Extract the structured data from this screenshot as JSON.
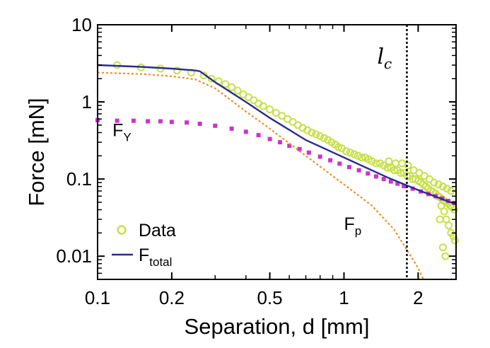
{
  "chart_data": {
    "type": "scatter",
    "title": "",
    "xlabel": "Separation, d [mm]",
    "ylabel": "Force [mN]",
    "xscale": "log",
    "yscale": "log",
    "xlim": [
      0.1,
      2.85
    ],
    "ylim": [
      0.005,
      10
    ],
    "x_ticks": [
      0.1,
      0.2,
      0.5,
      1,
      2
    ],
    "x_tick_labels": [
      "0.1",
      "0.2",
      "0.5",
      "1",
      "2"
    ],
    "y_ticks": [
      0.01,
      0.1,
      1,
      10
    ],
    "y_tick_labels": [
      "0.01",
      "0.1",
      "1",
      "10"
    ],
    "grid": false,
    "legend_position": "bottom-left",
    "colors": {
      "data": "#c8e04a",
      "total": "#2b2b8e",
      "fp": "#f28c28",
      "fy": "#cc33cc",
      "lc_line": "#000000"
    },
    "series": [
      {
        "name": "Data",
        "style": "open-circles",
        "x": [
          0.12,
          0.15,
          0.18,
          0.21,
          0.24,
          0.27,
          0.29,
          0.31,
          0.33,
          0.35,
          0.37,
          0.39,
          0.41,
          0.43,
          0.45,
          0.47,
          0.5,
          0.53,
          0.56,
          0.59,
          0.62,
          0.65,
          0.68,
          0.71,
          0.74,
          0.77,
          0.8,
          0.83,
          0.86,
          0.89,
          0.92,
          0.95,
          0.98,
          1.02,
          1.06,
          1.1,
          1.14,
          1.18,
          1.22,
          1.26,
          1.3,
          1.35,
          1.4,
          1.45,
          1.5,
          1.55,
          1.6,
          1.65,
          1.7,
          1.75,
          1.8,
          1.85,
          1.9,
          1.95,
          2.0,
          2.05,
          2.1,
          2.15,
          2.2,
          2.25,
          2.3,
          2.35,
          2.4,
          2.45,
          2.5,
          2.55,
          2.6,
          2.65,
          2.7,
          2.75,
          2.8,
          1.52,
          1.62,
          1.72,
          1.82,
          1.92,
          2.02,
          2.12,
          2.22,
          2.32,
          2.42,
          2.52,
          2.62,
          2.72,
          2.48,
          2.55,
          2.6,
          2.66,
          2.72,
          2.78,
          2.82,
          2.45,
          2.52,
          2.58
        ],
        "y": [
          3.0,
          2.8,
          2.7,
          2.55,
          2.4,
          2.2,
          2.0,
          1.85,
          1.7,
          1.55,
          1.4,
          1.25,
          1.15,
          1.05,
          0.95,
          0.88,
          0.8,
          0.72,
          0.66,
          0.6,
          0.55,
          0.5,
          0.46,
          0.43,
          0.4,
          0.38,
          0.36,
          0.34,
          0.32,
          0.3,
          0.28,
          0.26,
          0.25,
          0.23,
          0.22,
          0.21,
          0.2,
          0.19,
          0.19,
          0.18,
          0.17,
          0.16,
          0.16,
          0.15,
          0.14,
          0.14,
          0.13,
          0.13,
          0.12,
          0.12,
          0.11,
          0.11,
          0.1,
          0.1,
          0.095,
          0.09,
          0.085,
          0.08,
          0.075,
          0.07,
          0.068,
          0.065,
          0.06,
          0.058,
          0.055,
          0.052,
          0.05,
          0.048,
          0.045,
          0.043,
          0.04,
          0.17,
          0.16,
          0.16,
          0.15,
          0.13,
          0.12,
          0.11,
          0.1,
          0.09,
          0.085,
          0.08,
          0.075,
          0.07,
          0.045,
          0.038,
          0.03,
          0.025,
          0.02,
          0.018,
          0.016,
          0.03,
          0.013,
          0.01
        ]
      },
      {
        "name": "F_total",
        "label_main": "F",
        "label_sub": "total",
        "style": "solid-line",
        "x": [
          0.1,
          0.15,
          0.2,
          0.25,
          0.26,
          0.3,
          0.4,
          0.5,
          0.7,
          1.0,
          1.5,
          2.0,
          2.5,
          2.85
        ],
        "y": [
          3.0,
          2.85,
          2.7,
          2.55,
          2.5,
          1.8,
          1.0,
          0.62,
          0.32,
          0.19,
          0.105,
          0.072,
          0.055,
          0.047
        ]
      },
      {
        "name": "F_p",
        "label_main": "F",
        "label_sub": "p",
        "style": "dotted-line",
        "x": [
          0.1,
          0.15,
          0.2,
          0.25,
          0.3,
          0.4,
          0.5,
          0.7,
          1.0,
          1.3,
          1.6,
          1.8,
          2.0,
          2.1
        ],
        "y": [
          2.4,
          2.3,
          2.15,
          1.95,
          1.5,
          0.75,
          0.45,
          0.2,
          0.085,
          0.045,
          0.022,
          0.012,
          0.007,
          0.005
        ]
      },
      {
        "name": "F_Y",
        "label_main": "F",
        "label_sub": "Y",
        "style": "square-dots",
        "x": [
          0.1,
          0.12,
          0.14,
          0.16,
          0.18,
          0.2,
          0.23,
          0.26,
          0.3,
          0.35,
          0.4,
          0.45,
          0.5,
          0.55,
          0.6,
          0.66,
          0.72,
          0.8,
          0.88,
          0.96,
          1.05,
          1.15,
          1.25,
          1.35,
          1.45,
          1.55,
          1.65,
          1.75,
          1.9,
          2.05,
          2.2,
          2.35,
          2.5,
          2.65,
          2.8
        ],
        "y": [
          0.58,
          0.57,
          0.57,
          0.56,
          0.56,
          0.55,
          0.54,
          0.52,
          0.49,
          0.45,
          0.41,
          0.37,
          0.33,
          0.3,
          0.27,
          0.245,
          0.22,
          0.195,
          0.175,
          0.158,
          0.143,
          0.13,
          0.118,
          0.108,
          0.1,
          0.093,
          0.087,
          0.081,
          0.075,
          0.069,
          0.064,
          0.06,
          0.056,
          0.052,
          0.049
        ]
      }
    ],
    "reference_line": {
      "label": "l",
      "label_sub": "c",
      "x": 1.8,
      "style": "dotted-vertical"
    },
    "annotations": [
      {
        "key": "fy",
        "main": "F",
        "sub": "Y",
        "x": 0.115,
        "y": 0.36
      },
      {
        "key": "fp",
        "main": "F",
        "sub": "p",
        "x": 1.0,
        "y": 0.022
      }
    ],
    "legend": [
      {
        "key": "data",
        "label": "Data"
      },
      {
        "key": "total",
        "label_main": "F",
        "label_sub": "total"
      }
    ]
  }
}
